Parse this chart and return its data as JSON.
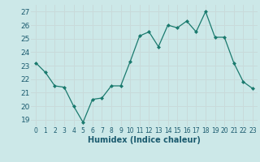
{
  "x": [
    0,
    1,
    2,
    3,
    4,
    5,
    6,
    7,
    8,
    9,
    10,
    11,
    12,
    13,
    14,
    15,
    16,
    17,
    18,
    19,
    20,
    21,
    22,
    23
  ],
  "y": [
    23.2,
    22.5,
    21.5,
    21.4,
    20.0,
    18.8,
    20.5,
    20.6,
    21.5,
    21.5,
    23.3,
    25.2,
    25.5,
    24.4,
    26.0,
    25.8,
    26.3,
    25.5,
    27.0,
    25.1,
    25.1,
    23.2,
    21.8,
    21.3
  ],
  "line_color": "#1a7a6e",
  "marker_color": "#1a7a6e",
  "bg_color": "#cce8e8",
  "grid_color": "#c0d8d4",
  "xlabel": "Humidex (Indice chaleur)",
  "ylabel_ticks": [
    19,
    20,
    21,
    22,
    23,
    24,
    25,
    26,
    27
  ],
  "xlim": [
    -0.5,
    23.5
  ],
  "ylim": [
    18.5,
    27.5
  ],
  "xtick_labels": [
    "0",
    "1",
    "2",
    "3",
    "4",
    "5",
    "6",
    "7",
    "8",
    "9",
    "10",
    "11",
    "12",
    "13",
    "14",
    "15",
    "16",
    "17",
    "18",
    "19",
    "20",
    "21",
    "22",
    "23"
  ]
}
